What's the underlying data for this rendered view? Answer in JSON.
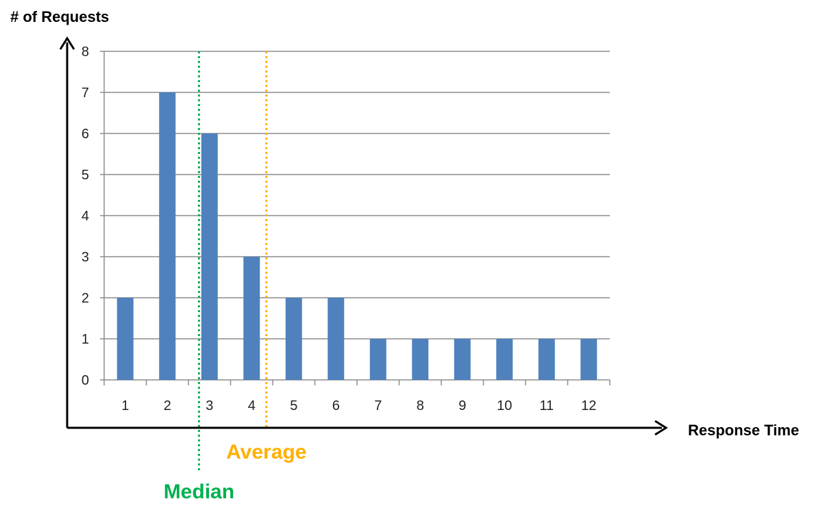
{
  "chart_data": {
    "type": "bar",
    "xlabel": "Response Time",
    "ylabel": "# of Requests",
    "categories": [
      "1",
      "2",
      "3",
      "4",
      "5",
      "6",
      "7",
      "8",
      "9",
      "10",
      "11",
      "12"
    ],
    "values": [
      2,
      7,
      6,
      3,
      2,
      2,
      1,
      1,
      1,
      1,
      1,
      1
    ],
    "ylim": [
      0,
      8
    ],
    "yticks": [
      "0",
      "1",
      "2",
      "3",
      "4",
      "5",
      "6",
      "7",
      "8"
    ],
    "grid": true,
    "bar_color": "#4f81bd",
    "annotations": [
      {
        "label": "Median",
        "x": 2.75,
        "color": "#00b050"
      },
      {
        "label": "Average",
        "x": 4.35,
        "color": "#ffb000"
      }
    ]
  }
}
